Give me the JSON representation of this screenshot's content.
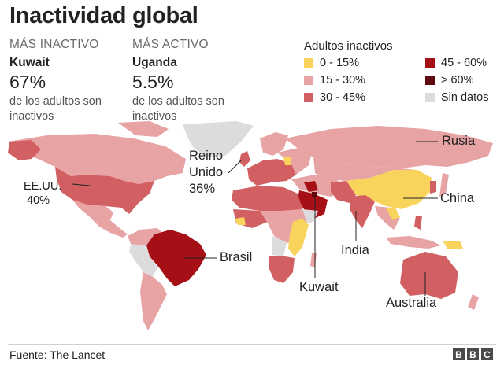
{
  "title": "Inactividad global",
  "most_inactive": {
    "heading": "MÁS INACTIVO",
    "country": "Kuwait",
    "value": "67%",
    "desc1": "de los adultos son",
    "desc2": "inactivos"
  },
  "most_active": {
    "heading": "MÁS ACTIVO",
    "country": "Uganda",
    "value": "5.5%",
    "desc1": "de los adultos son",
    "desc2": "inactivos"
  },
  "legend": {
    "title": "Adultos inactivos",
    "items": [
      {
        "label": "0 - 15%",
        "color": "#f9d45c"
      },
      {
        "label": "15 - 30%",
        "color": "#e8a3a5"
      },
      {
        "label": "30 - 45%",
        "color": "#d26063"
      },
      {
        "label": "45 - 60%",
        "color": "#a50f15"
      },
      {
        "label": "> 60%",
        "color": "#5e0a0e"
      },
      {
        "label": "Sin datos",
        "color": "#dcdcdc"
      }
    ]
  },
  "labels": {
    "usa": [
      "EE.UU.",
      "40%"
    ],
    "uk": [
      "Reino",
      "Unido",
      "36%"
    ],
    "russia": "Rusia",
    "china": "China",
    "brazil": "Brasil",
    "india": "India",
    "kuwait": "Kuwait",
    "australia": "Australia"
  },
  "source": "Fuente: The Lancet",
  "brand": [
    "B",
    "B",
    "C"
  ]
}
